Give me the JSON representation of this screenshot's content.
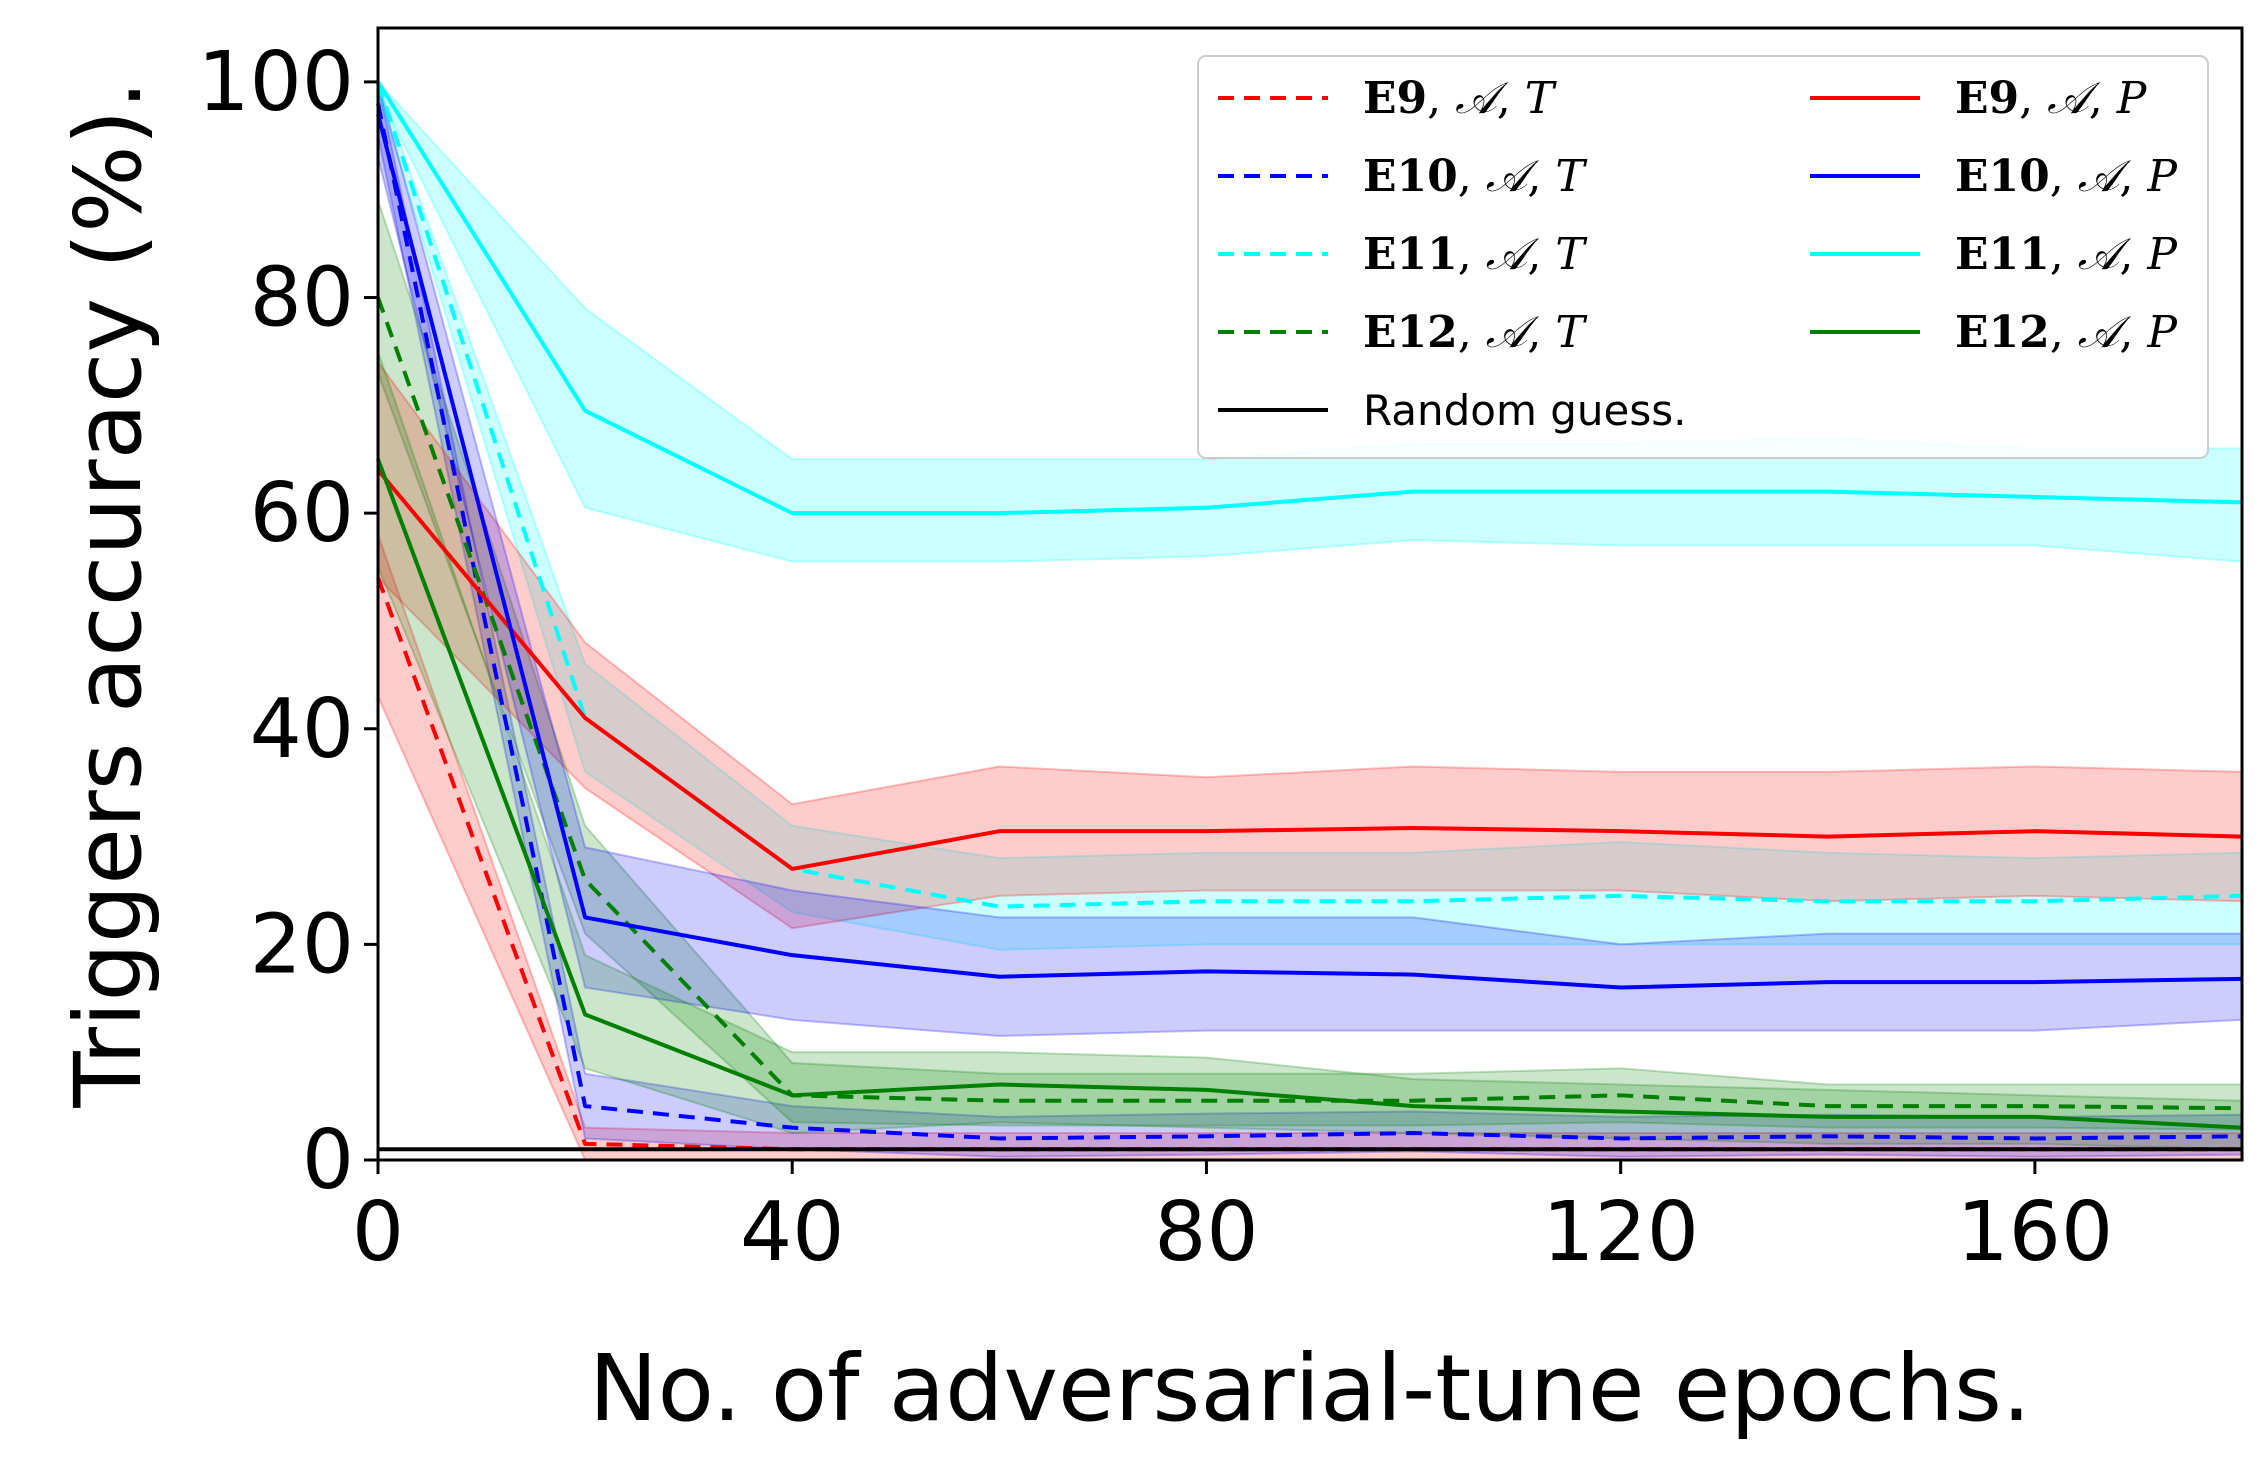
{
  "chart_data": {
    "type": "line",
    "title": "",
    "xlabel": "No. of adversarial-tune epochs.",
    "ylabel": "Triggers accuracy (%).",
    "xlim": [
      0,
      180
    ],
    "ylim": [
      0,
      105
    ],
    "xticks": [
      0,
      40,
      80,
      120,
      160
    ],
    "xtick_labels": [
      "0",
      "40",
      "80",
      "120",
      "160"
    ],
    "yticks": [
      0,
      20,
      40,
      60,
      80,
      100
    ],
    "ytick_labels": [
      "0",
      "20",
      "40",
      "60",
      "80",
      "100"
    ],
    "legend_position": "top-right",
    "random_guess": {
      "name": "Random guess.",
      "value": 1,
      "color": "#000000"
    },
    "series": [
      {
        "name": "E9, A, T",
        "exp": "E9",
        "mode": "T",
        "color": "#ff0000",
        "dash": true,
        "x": [
          0,
          20,
          40,
          60,
          80,
          100,
          120,
          140,
          160,
          180
        ],
        "y": [
          54,
          1.5,
          1,
          1,
          1,
          1,
          1,
          1,
          1,
          1
        ],
        "upper": [
          58,
          3,
          2.5,
          2.5,
          2.5,
          2.5,
          2.5,
          2.5,
          2.5,
          2.5
        ],
        "lower": [
          43,
          0,
          0,
          0,
          0,
          0,
          0,
          0,
          0,
          0
        ]
      },
      {
        "name": "E10, A, T",
        "exp": "E10",
        "mode": "T",
        "color": "#0000ff",
        "dash": true,
        "x": [
          0,
          20,
          40,
          60,
          80,
          100,
          120,
          140,
          160,
          180
        ],
        "y": [
          98,
          5,
          3,
          2,
          2.2,
          2.5,
          2,
          2.2,
          2,
          2.2
        ],
        "upper": [
          100,
          8,
          5,
          4,
          4.3,
          4.5,
          4,
          4.2,
          4,
          4.2
        ],
        "lower": [
          95,
          2,
          1,
          0.3,
          0.5,
          0.8,
          0.3,
          0.5,
          0.3,
          0.5
        ]
      },
      {
        "name": "E11, A, T",
        "exp": "E11",
        "mode": "T",
        "color": "#00ffff",
        "dash": true,
        "x": [
          0,
          20,
          40,
          60,
          80,
          100,
          120,
          140,
          160,
          180
        ],
        "y": [
          100,
          41,
          27,
          23.5,
          24,
          24,
          24.5,
          24,
          24,
          24.5
        ],
        "upper": [
          100,
          46,
          31,
          28,
          28.5,
          28.5,
          29.5,
          28.5,
          28,
          28.5
        ],
        "lower": [
          99,
          36,
          23,
          19.5,
          20,
          20,
          20,
          20,
          20,
          20
        ]
      },
      {
        "name": "E12, A, T",
        "exp": "E12",
        "mode": "T",
        "color": "#008000",
        "dash": true,
        "x": [
          0,
          20,
          40,
          60,
          80,
          100,
          120,
          140,
          160,
          180
        ],
        "y": [
          80,
          26,
          6,
          5.5,
          5.5,
          5.5,
          6,
          5,
          5,
          4.8
        ],
        "upper": [
          89,
          31,
          9,
          8,
          8,
          8,
          8.5,
          7,
          7,
          7
        ],
        "lower": [
          73,
          21,
          3.5,
          3.2,
          3.2,
          3.2,
          3.5,
          3,
          3,
          2.8
        ]
      },
      {
        "name": "Random guess.",
        "exp": "",
        "mode": "",
        "color": "#000000",
        "dash": false,
        "x": [
          0,
          180
        ],
        "y": [
          1,
          1
        ]
      },
      {
        "name": "E9, A, P",
        "exp": "E9",
        "mode": "P",
        "color": "#ff0000",
        "dash": false,
        "x": [
          0,
          20,
          40,
          60,
          80,
          100,
          120,
          140,
          160,
          180
        ],
        "y": [
          64,
          41,
          27,
          30.5,
          30.5,
          30.8,
          30.5,
          30,
          30.5,
          30
        ],
        "upper": [
          74,
          48,
          33,
          36.5,
          35.5,
          36.5,
          36,
          36,
          36.5,
          36
        ],
        "lower": [
          54,
          34.5,
          21.5,
          24.5,
          25,
          25,
          25,
          24,
          24.5,
          24
        ]
      },
      {
        "name": "E10, A, P",
        "exp": "E10",
        "mode": "P",
        "color": "#0000ff",
        "dash": false,
        "x": [
          0,
          20,
          40,
          60,
          80,
          100,
          120,
          140,
          160,
          180
        ],
        "y": [
          97,
          22.5,
          19,
          17,
          17.5,
          17.2,
          16,
          16.5,
          16.5,
          16.8
        ],
        "upper": [
          100,
          29,
          25,
          22.5,
          22.5,
          22.5,
          20,
          21,
          21,
          21
        ],
        "lower": [
          93,
          16,
          13,
          11.5,
          12,
          12,
          12,
          12,
          12,
          13
        ]
      },
      {
        "name": "E11, A, P",
        "exp": "E11",
        "mode": "P",
        "color": "#00ffff",
        "dash": false,
        "x": [
          0,
          20,
          40,
          60,
          80,
          100,
          120,
          140,
          160,
          180
        ],
        "y": [
          100,
          69.5,
          60,
          60,
          60.5,
          62,
          62,
          62,
          61.5,
          61
        ],
        "upper": [
          100,
          79,
          65,
          65,
          65,
          66.5,
          66.5,
          67,
          66,
          66
        ],
        "lower": [
          99,
          60.5,
          55.5,
          55.5,
          56,
          57.5,
          57,
          57,
          57,
          55.5
        ]
      },
      {
        "name": "E12, A, P",
        "exp": "E12",
        "mode": "P",
        "color": "#008000",
        "dash": false,
        "x": [
          0,
          20,
          40,
          60,
          80,
          100,
          120,
          140,
          160,
          180
        ],
        "y": [
          65,
          13.5,
          6,
          7,
          6.5,
          5,
          4.5,
          4,
          4,
          3
        ],
        "upper": [
          75,
          19,
          10,
          10,
          9.5,
          7.5,
          7,
          6.5,
          6,
          5.5
        ],
        "lower": [
          55,
          8.5,
          2.5,
          3.5,
          3,
          2.5,
          2,
          1.5,
          1.5,
          1
        ]
      }
    ]
  }
}
